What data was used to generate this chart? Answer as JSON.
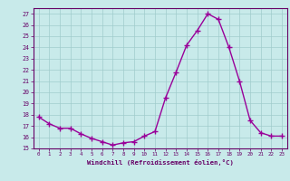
{
  "x": [
    0,
    1,
    2,
    3,
    4,
    5,
    6,
    7,
    8,
    9,
    10,
    11,
    12,
    13,
    14,
    15,
    16,
    17,
    18,
    19,
    20,
    21,
    22,
    23
  ],
  "y": [
    17.8,
    17.2,
    16.8,
    16.8,
    16.3,
    15.9,
    15.6,
    15.3,
    15.5,
    15.6,
    16.1,
    16.5,
    19.5,
    21.8,
    24.2,
    25.5,
    27.0,
    26.5,
    24.0,
    21.0,
    17.5,
    16.4,
    16.1,
    16.1
  ],
  "line_color": "#990099",
  "marker_color": "#990099",
  "bg_color": "#c8eaea",
  "grid_color": "#a0cccc",
  "axis_color": "#660066",
  "xlabel": "Windchill (Refroidissement éolien,°C)",
  "font_color": "#660066",
  "xlim": [
    -0.5,
    23.5
  ],
  "ylim": [
    15,
    27.5
  ],
  "yticks": [
    15,
    16,
    17,
    18,
    19,
    20,
    21,
    22,
    23,
    24,
    25,
    26,
    27
  ],
  "xticks": [
    0,
    1,
    2,
    3,
    4,
    5,
    6,
    7,
    8,
    9,
    10,
    11,
    12,
    13,
    14,
    15,
    16,
    17,
    18,
    19,
    20,
    21,
    22,
    23
  ],
  "line_width": 1.0,
  "marker_size": 4
}
